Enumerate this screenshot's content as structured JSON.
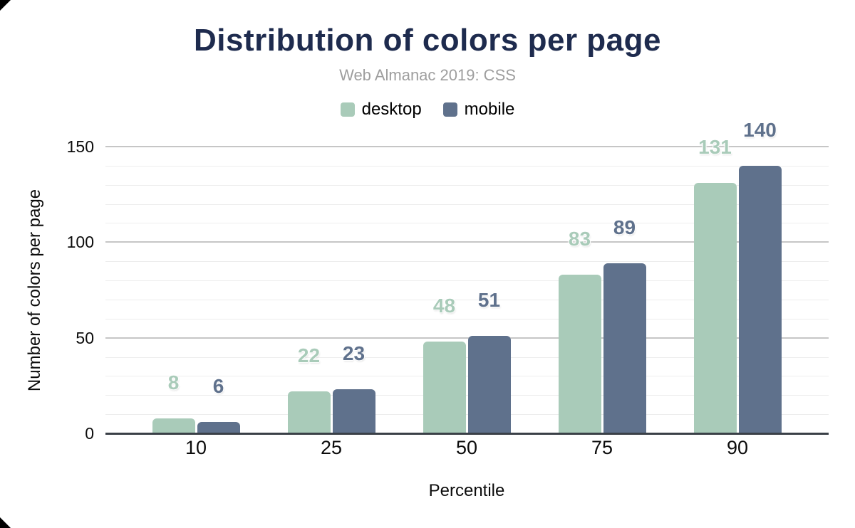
{
  "chart_data": {
    "type": "bar",
    "title": "Distribution of colors per page",
    "subtitle": "Web Almanac 2019: CSS",
    "xlabel": "Percentile",
    "ylabel": "Number of colors per page",
    "categories": [
      "10",
      "25",
      "50",
      "75",
      "90"
    ],
    "series": [
      {
        "name": "desktop",
        "color": "#a9cbb9",
        "values": [
          8,
          22,
          48,
          83,
          131
        ]
      },
      {
        "name": "mobile",
        "color": "#5f718c",
        "values": [
          6,
          23,
          51,
          89,
          140
        ]
      }
    ],
    "ylim": [
      0,
      150
    ],
    "yticks": [
      0,
      50,
      100,
      150
    ],
    "minor_grid_step": 10,
    "grid": true,
    "legend_position": "top"
  },
  "colors": {
    "title": "#1e2b4e",
    "subtitle": "#9e9e9e",
    "tick_label": "#0c0c0c",
    "axis_title": "#0c0c0c",
    "axis_line": "#3a4047",
    "grid_major": "#c6c6c6",
    "grid_minor": "#ededed",
    "background": "#ffffff"
  }
}
